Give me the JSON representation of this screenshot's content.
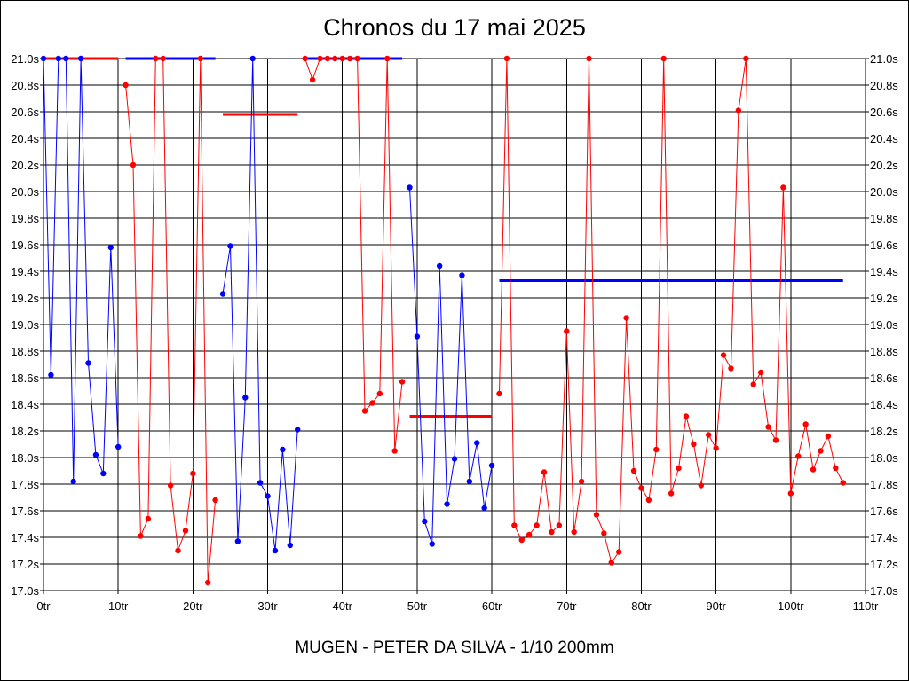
{
  "chart_data": {
    "type": "line",
    "title": "Chronos du 17 mai 2025",
    "footer": "MUGEN - PETER DA SILVA - 1/10 200mm",
    "xlabel": "",
    "ylabel": "",
    "xlim": [
      0,
      110
    ],
    "ylim": [
      17.0,
      21.0
    ],
    "grid": true,
    "legend": "none",
    "x_ticks": [
      "0tr",
      "10tr",
      "20tr",
      "30tr",
      "40tr",
      "50tr",
      "60tr",
      "70tr",
      "80tr",
      "90tr",
      "100tr",
      "110tr"
    ],
    "y_ticks": [
      "17.0s",
      "17.2s",
      "17.4s",
      "17.6s",
      "17.8s",
      "18.0s",
      "18.2s",
      "18.4s",
      "18.6s",
      "18.8s",
      "19.0s",
      "19.2s",
      "19.4s",
      "19.6s",
      "19.8s",
      "20.0s",
      "20.2s",
      "20.4s",
      "20.6s",
      "20.8s",
      "21.0s"
    ],
    "series": [
      {
        "color": "#0000ff",
        "x": [
          0,
          1,
          2,
          3,
          4,
          5,
          6,
          7,
          8,
          9,
          10
        ],
        "y": [
          21.0,
          18.62,
          21.0,
          21.0,
          17.82,
          21.0,
          18.71,
          18.02,
          17.88,
          19.58,
          18.08
        ]
      },
      {
        "color": "#ff0000",
        "x": [
          11,
          12,
          13,
          14,
          15,
          16,
          17,
          18,
          19,
          20,
          21,
          22,
          23
        ],
        "y": [
          20.8,
          20.2,
          17.41,
          17.54,
          21.0,
          21.0,
          17.79,
          17.3,
          17.45,
          17.88,
          21.0,
          17.06,
          17.68
        ]
      },
      {
        "color": "#0000ff",
        "x": [
          24,
          25,
          26,
          27,
          28,
          29,
          30,
          31,
          32,
          33,
          34
        ],
        "y": [
          19.23,
          19.59,
          17.37,
          18.45,
          21.0,
          17.81,
          17.71,
          17.3,
          18.06,
          17.34,
          18.21
        ]
      },
      {
        "color": "#ff0000",
        "x": [
          35,
          36,
          37,
          38,
          39,
          40,
          41,
          42,
          43,
          44,
          45,
          46,
          47,
          48
        ],
        "y": [
          21.0,
          20.84,
          21.0,
          21.0,
          21.0,
          21.0,
          21.0,
          21.0,
          18.35,
          18.41,
          18.48,
          21.0,
          18.05,
          18.57
        ]
      },
      {
        "color": "#0000ff",
        "x": [
          49,
          50,
          51,
          52,
          53,
          54,
          55,
          56,
          57,
          58,
          59,
          60
        ],
        "y": [
          20.03,
          18.91,
          17.52,
          17.35,
          19.44,
          17.65,
          17.99,
          19.37,
          17.82,
          18.11,
          17.62,
          17.94
        ]
      },
      {
        "color": "#ff0000",
        "x": [
          61,
          62,
          63,
          64,
          65,
          66,
          67,
          68,
          69,
          70,
          71,
          72,
          73,
          74,
          75,
          76,
          77,
          78,
          79,
          80,
          81,
          82,
          83,
          84,
          85,
          86,
          87,
          88,
          89,
          90,
          91,
          92,
          93,
          94,
          95,
          96,
          97,
          98,
          99,
          100,
          101,
          102,
          103,
          104,
          105,
          106,
          107
        ],
        "y": [
          18.48,
          21.0,
          17.49,
          17.38,
          17.42,
          17.49,
          17.89,
          17.44,
          17.49,
          18.95,
          17.44,
          17.82,
          21.0,
          17.57,
          17.43,
          17.21,
          17.29,
          19.05,
          17.9,
          17.77,
          17.68,
          18.06,
          21.0,
          17.73,
          17.92,
          18.31,
          18.1,
          17.79,
          18.17,
          18.07,
          18.77,
          18.67,
          20.61,
          21.0,
          18.55,
          18.64,
          18.23,
          18.13,
          20.03,
          17.73,
          18.01,
          18.25,
          17.91,
          18.05,
          18.16,
          17.92,
          17.81
        ]
      }
    ],
    "average_lines": [
      {
        "color": "#ff0000",
        "x_start": 0,
        "x_end": 10,
        "y": 21.0
      },
      {
        "color": "#0000ff",
        "x_start": 11,
        "x_end": 23,
        "y": 21.0
      },
      {
        "color": "#ff0000",
        "x_start": 24,
        "x_end": 34,
        "y": 20.58
      },
      {
        "color": "#0000ff",
        "x_start": 35,
        "x_end": 48,
        "y": 21.0
      },
      {
        "color": "#ff0000",
        "x_start": 49,
        "x_end": 60,
        "y": 18.31
      },
      {
        "color": "#0000ff",
        "x_start": 61,
        "x_end": 107,
        "y": 19.33
      }
    ]
  }
}
